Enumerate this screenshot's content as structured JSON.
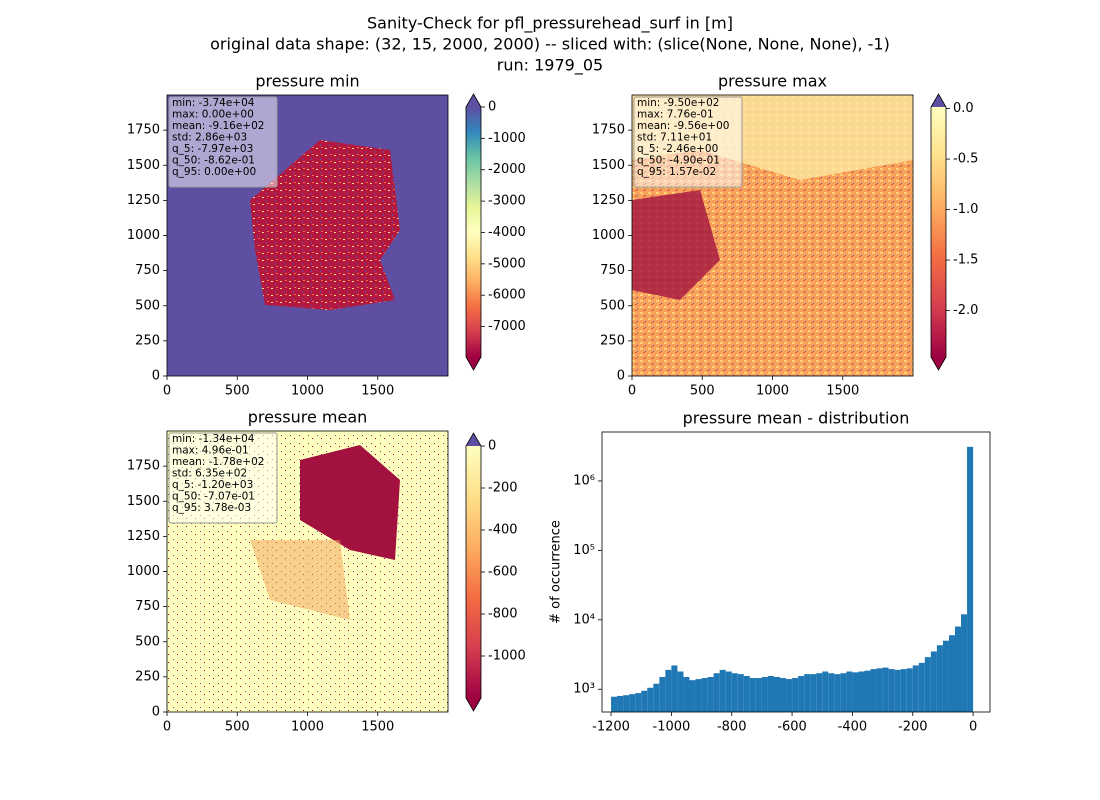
{
  "figure_title": [
    "Sanity-Check for pfl_pressurehead_surf in [m]",
    "original data shape: (32, 15, 2000, 2000) -- sliced with: (slice(None, None, None), -1)",
    "run: 1979_05"
  ],
  "chart_data": [
    {
      "type": "heatmap",
      "title": "pressure min",
      "xlim": [
        0,
        2000
      ],
      "xticks": [
        0,
        500,
        1000,
        1500
      ],
      "ylim": [
        0,
        2000
      ],
      "yticks": [
        0,
        250,
        500,
        750,
        1000,
        1250,
        1500,
        1750
      ],
      "stats": [
        "min: -3.74e+04",
        "max: 0.00e+00",
        "mean: -9.16e+02",
        "std: 2.86e+03",
        "q_5: -7.97e+03",
        "q_50: -8.62e-01",
        "q_95: 0.00e+00"
      ],
      "colorbar_lim": [
        -7970,
        0
      ],
      "colorbar_ticks": [
        0,
        -1000,
        -2000,
        -3000,
        -4000,
        -5000,
        -6000,
        -7000
      ],
      "colormap": [
        "#9e0142",
        "#d53e4f",
        "#f46d43",
        "#fdae61",
        "#fee08b",
        "#ffffbf",
        "#e6f598",
        "#abdda4",
        "#66c2a5",
        "#3288bd",
        "#5e4fa2"
      ],
      "extend_colors": [
        "#9e0142",
        "#5e4fa2"
      ]
    },
    {
      "type": "heatmap",
      "title": "pressure max",
      "xlim": [
        0,
        2000
      ],
      "xticks": [
        0,
        500,
        1000,
        1500
      ],
      "ylim": [
        0,
        2000
      ],
      "yticks": [
        0,
        250,
        500,
        750,
        1000,
        1250,
        1500,
        1750
      ],
      "stats": [
        "min: -9.50e+02",
        "max: 7.76e-01",
        "mean: -9.56e+00",
        "std: 7.11e+01",
        "q_5: -2.46e+00",
        "q_50: -4.90e-01",
        "q_95: 1.57e-02"
      ],
      "colorbar_lim": [
        -2.46,
        0.0157
      ],
      "colorbar_ticks": [
        {
          "value": 0,
          "label": "0.0"
        },
        -0.5,
        {
          "value": -1,
          "label": "-1.0"
        },
        -1.5,
        {
          "value": -2,
          "label": "-2.0"
        }
      ],
      "colormap": [
        "#9e0142",
        "#d53e4f",
        "#f46d43",
        "#fdae61",
        "#fee08b",
        "#ffffbf"
      ],
      "extend_colors": [
        "#9e0142",
        "#5e4fa2"
      ]
    },
    {
      "type": "heatmap",
      "title": "pressure mean",
      "xlim": [
        0,
        2000
      ],
      "xticks": [
        0,
        500,
        1000,
        1500
      ],
      "ylim": [
        0,
        2000
      ],
      "yticks": [
        0,
        250,
        500,
        750,
        1000,
        1250,
        1500,
        1750
      ],
      "stats": [
        "min: -1.34e+04",
        "max: 4.96e-01",
        "mean: -1.78e+02",
        "std: 6.35e+02",
        "q_5: -1.20e+03",
        "q_50: -7.07e-01",
        "q_95: 3.78e-03"
      ],
      "colorbar_lim": [
        -1200,
        0
      ],
      "colorbar_ticks": [
        0,
        -200,
        -400,
        -600,
        -800,
        -1000
      ],
      "colormap": [
        "#9e0142",
        "#d53e4f",
        "#f46d43",
        "#fdae61",
        "#fee08b",
        "#ffffbf"
      ],
      "extend_colors": [
        "#9e0142",
        "#5e4fa2"
      ]
    },
    {
      "type": "histogram",
      "title": "pressure mean - distribution",
      "y_label": "# of occurrence",
      "color": "#1f77b4",
      "log_y": true,
      "xlim": [
        -1230,
        56
      ],
      "xticks": [
        -1200,
        -1000,
        -800,
        -600,
        -400,
        -200,
        0
      ],
      "ylim": [
        470,
        5070000
      ],
      "yticks": [
        {
          "value": 1000,
          "label": "10³"
        },
        {
          "value": 10000,
          "label": "10⁴"
        },
        {
          "value": 100000,
          "label": "10⁵"
        },
        {
          "value": 1000000,
          "label": "10⁶"
        }
      ],
      "bins": [
        -1200,
        -1180,
        -1160,
        -1140,
        -1120,
        -1100,
        -1080,
        -1060,
        -1040,
        -1020,
        -1000,
        -980,
        -960,
        -940,
        -920,
        -900,
        -880,
        -860,
        -840,
        -820,
        -800,
        -780,
        -760,
        -740,
        -720,
        -700,
        -680,
        -660,
        -640,
        -620,
        -600,
        -580,
        -560,
        -540,
        -520,
        -500,
        -480,
        -460,
        -440,
        -420,
        -400,
        -380,
        -360,
        -340,
        -320,
        -300,
        -280,
        -260,
        -240,
        -220,
        -200,
        -180,
        -160,
        -140,
        -120,
        -100,
        -80,
        -60,
        -40,
        -20,
        0
      ],
      "values": [
        780,
        800,
        820,
        850,
        880,
        950,
        1050,
        1200,
        1500,
        1900,
        2200,
        1800,
        1500,
        1350,
        1400,
        1450,
        1500,
        1700,
        1900,
        1800,
        1700,
        1650,
        1550,
        1450,
        1450,
        1500,
        1550,
        1500,
        1450,
        1400,
        1450,
        1550,
        1650,
        1650,
        1700,
        1800,
        1700,
        1650,
        1700,
        1800,
        1750,
        1800,
        1850,
        1950,
        2000,
        2050,
        1950,
        1900,
        1950,
        2000,
        2200,
        2400,
        2900,
        3500,
        4300,
        5000,
        6000,
        8000,
        12000,
        3100000
      ]
    }
  ]
}
